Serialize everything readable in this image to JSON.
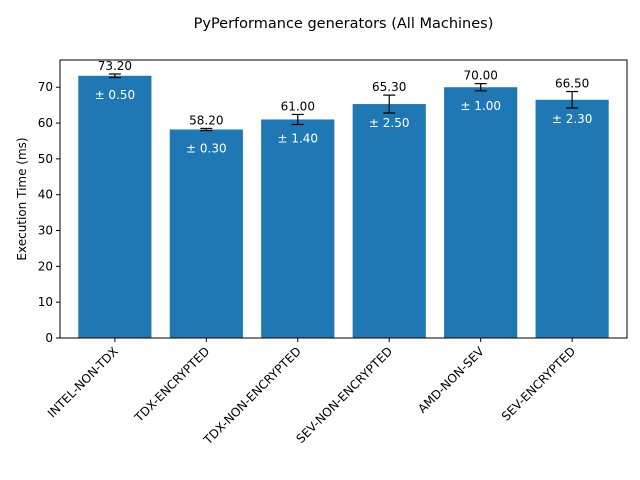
{
  "chart_data": {
    "type": "bar",
    "title": "PyPerformance generators (All Machines)",
    "xlabel": "",
    "ylabel": "Execution Time (ms)",
    "ylim": [
      0,
      77.6
    ],
    "yticks": [
      0,
      10,
      20,
      30,
      40,
      50,
      60,
      70
    ],
    "grid": false,
    "legend": "none",
    "bar_color": "#1f77b4",
    "categories": [
      "INTEL-NON-TDX",
      "TDX-ENCRYPTED",
      "TDX-NON-ENCRYPTED",
      "SEV-NON-ENCRYPTED",
      "AMD-NON-SEV",
      "SEV-ENCRYPTED"
    ],
    "values": [
      73.2,
      58.2,
      61.0,
      65.3,
      70.0,
      66.5
    ],
    "errors": [
      0.5,
      0.3,
      1.4,
      2.5,
      1.0,
      2.3
    ],
    "value_labels": [
      "73.20",
      "58.20",
      "61.00",
      "65.30",
      "70.00",
      "66.50"
    ],
    "error_labels": [
      "± 0.50",
      "± 0.30",
      "± 1.40",
      "± 2.50",
      "± 1.00",
      "± 2.30"
    ]
  }
}
